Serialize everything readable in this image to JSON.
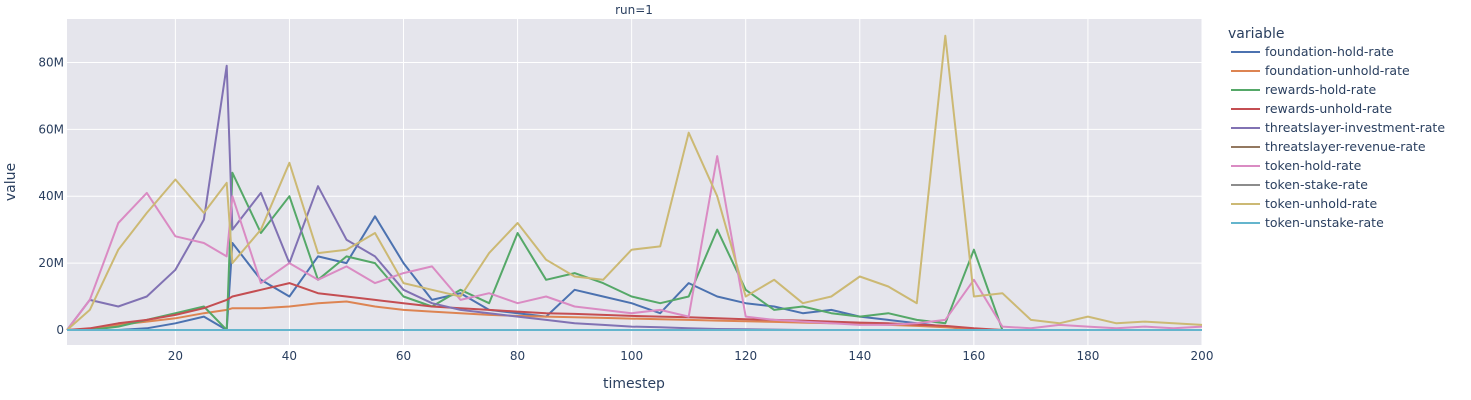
{
  "chart_data": {
    "type": "line",
    "title": "run=1",
    "xlabel": "timestep",
    "ylabel": "value",
    "xlim": [
      1,
      200
    ],
    "ylim": [
      -4500000,
      93000000
    ],
    "x_ticks": [
      20,
      40,
      60,
      80,
      100,
      120,
      140,
      160,
      180,
      200
    ],
    "y_ticks": [
      0,
      20000000,
      40000000,
      60000000,
      80000000
    ],
    "y_tick_labels": [
      "0",
      "20M",
      "40M",
      "60M",
      "80M"
    ],
    "grid": true,
    "legend": {
      "title": "variable",
      "position": "right"
    },
    "x": [
      1,
      5,
      10,
      15,
      20,
      25,
      29,
      30,
      35,
      40,
      45,
      50,
      55,
      60,
      65,
      70,
      75,
      80,
      85,
      90,
      95,
      100,
      105,
      110,
      115,
      120,
      125,
      130,
      135,
      140,
      145,
      150,
      155,
      160,
      165,
      170,
      175,
      180,
      185,
      190,
      195,
      200
    ],
    "series": [
      {
        "name": "foundation-hold-rate",
        "color": "#4c72b0",
        "values": [
          0,
          0,
          0,
          500000,
          2000000,
          4000000,
          0,
          26000000,
          15000000,
          10000000,
          22000000,
          20000000,
          34000000,
          20000000,
          9000000,
          11000000,
          6000000,
          5000000,
          4000000,
          12000000,
          10000000,
          8000000,
          5000000,
          14000000,
          10000000,
          8000000,
          7000000,
          5000000,
          6000000,
          4000000,
          3000000,
          2000000,
          1000000,
          0,
          0,
          0,
          0,
          0,
          0,
          0,
          0,
          0
        ]
      },
      {
        "name": "foundation-unhold-rate",
        "color": "#dd8452",
        "values": [
          0,
          200000,
          1500000,
          2500000,
          3500000,
          5000000,
          6000000,
          6500000,
          6500000,
          7000000,
          8000000,
          8500000,
          7000000,
          6000000,
          5500000,
          5000000,
          4500000,
          4200000,
          4000000,
          3800000,
          3600000,
          3400000,
          3200000,
          3000000,
          2800000,
          2600000,
          2400000,
          2200000,
          2000000,
          1800000,
          1500000,
          1200000,
          800000,
          300000,
          0,
          0,
          0,
          0,
          0,
          0,
          0,
          0
        ]
      },
      {
        "name": "rewards-hold-rate",
        "color": "#55a868",
        "values": [
          0,
          0,
          1000000,
          3000000,
          5000000,
          7000000,
          0,
          47000000,
          29000000,
          40000000,
          15000000,
          22000000,
          20000000,
          10000000,
          7000000,
          12000000,
          8000000,
          29000000,
          15000000,
          17000000,
          14000000,
          10000000,
          8000000,
          10000000,
          30000000,
          12000000,
          6000000,
          7000000,
          5000000,
          4000000,
          5000000,
          3000000,
          2000000,
          24000000,
          0,
          0,
          0,
          0,
          0,
          0,
          0,
          0
        ]
      },
      {
        "name": "rewards-unhold-rate",
        "color": "#c44e52",
        "values": [
          0,
          500000,
          2000000,
          3000000,
          4500000,
          6500000,
          9000000,
          10000000,
          12000000,
          14000000,
          11000000,
          10000000,
          9000000,
          8000000,
          7000000,
          6500000,
          6000000,
          5500000,
          5000000,
          4800000,
          4500000,
          4200000,
          4000000,
          3800000,
          3500000,
          3200000,
          3000000,
          2800000,
          2500000,
          2200000,
          2000000,
          1600000,
          1200000,
          500000,
          0,
          0,
          0,
          0,
          0,
          0,
          0,
          0
        ]
      },
      {
        "name": "threatslayer-investment-rate",
        "color": "#8172b3",
        "values": [
          0,
          9000000,
          7000000,
          10000000,
          18000000,
          33000000,
          79000000,
          30000000,
          41000000,
          20000000,
          43000000,
          27000000,
          22000000,
          12000000,
          8000000,
          6000000,
          5000000,
          4000000,
          3000000,
          2000000,
          1500000,
          1000000,
          800000,
          500000,
          300000,
          200000,
          100000,
          0,
          0,
          0,
          0,
          0,
          0,
          0,
          0,
          0,
          0,
          0,
          0,
          0,
          0,
          0
        ]
      },
      {
        "name": "threatslayer-revenue-rate",
        "color": "#937860",
        "values": [
          0,
          0,
          0,
          0,
          0,
          0,
          0,
          0,
          0,
          0,
          0,
          0,
          0,
          0,
          0,
          0,
          0,
          0,
          0,
          0,
          0,
          0,
          0,
          0,
          0,
          0,
          0,
          0,
          0,
          0,
          0,
          0,
          0,
          0,
          0,
          0,
          0,
          0,
          0,
          0,
          0,
          0
        ]
      },
      {
        "name": "token-hold-rate",
        "color": "#da8bc3",
        "values": [
          0,
          9000000,
          32000000,
          41000000,
          28000000,
          26000000,
          22000000,
          40000000,
          14000000,
          20000000,
          15000000,
          19000000,
          14000000,
          17000000,
          19000000,
          9000000,
          11000000,
          8000000,
          10000000,
          7000000,
          6000000,
          5000000,
          6000000,
          4000000,
          52000000,
          4000000,
          3000000,
          2500000,
          2000000,
          1500000,
          1500000,
          2000000,
          3000000,
          15000000,
          1000000,
          500000,
          1500000,
          1000000,
          500000,
          1000000,
          500000,
          1000000
        ]
      },
      {
        "name": "token-stake-rate",
        "color": "#8c8c8c",
        "values": [
          0,
          0,
          0,
          0,
          0,
          0,
          0,
          0,
          0,
          0,
          0,
          0,
          0,
          0,
          0,
          0,
          0,
          0,
          0,
          0,
          0,
          0,
          0,
          0,
          0,
          0,
          0,
          0,
          0,
          0,
          0,
          0,
          0,
          0,
          0,
          0,
          0,
          0,
          0,
          0,
          0,
          0
        ]
      },
      {
        "name": "token-unhold-rate",
        "color": "#ccb974",
        "values": [
          0,
          6000000,
          24000000,
          35000000,
          45000000,
          35000000,
          44000000,
          20000000,
          30000000,
          50000000,
          23000000,
          24000000,
          29000000,
          14000000,
          12000000,
          10000000,
          23000000,
          32000000,
          21000000,
          16000000,
          15000000,
          24000000,
          25000000,
          59000000,
          40000000,
          10000000,
          15000000,
          8000000,
          10000000,
          16000000,
          13000000,
          8000000,
          88000000,
          10000000,
          11000000,
          3000000,
          2000000,
          4000000,
          2000000,
          2500000,
          2000000,
          1500000
        ]
      },
      {
        "name": "token-unstake-rate",
        "color": "#64b5cd",
        "values": [
          0,
          0,
          0,
          0,
          0,
          0,
          0,
          0,
          0,
          0,
          0,
          0,
          0,
          0,
          0,
          0,
          0,
          0,
          0,
          0,
          0,
          0,
          0,
          0,
          0,
          0,
          0,
          0,
          0,
          0,
          0,
          0,
          0,
          0,
          0,
          0,
          0,
          0,
          0,
          0,
          0,
          0
        ]
      }
    ]
  }
}
